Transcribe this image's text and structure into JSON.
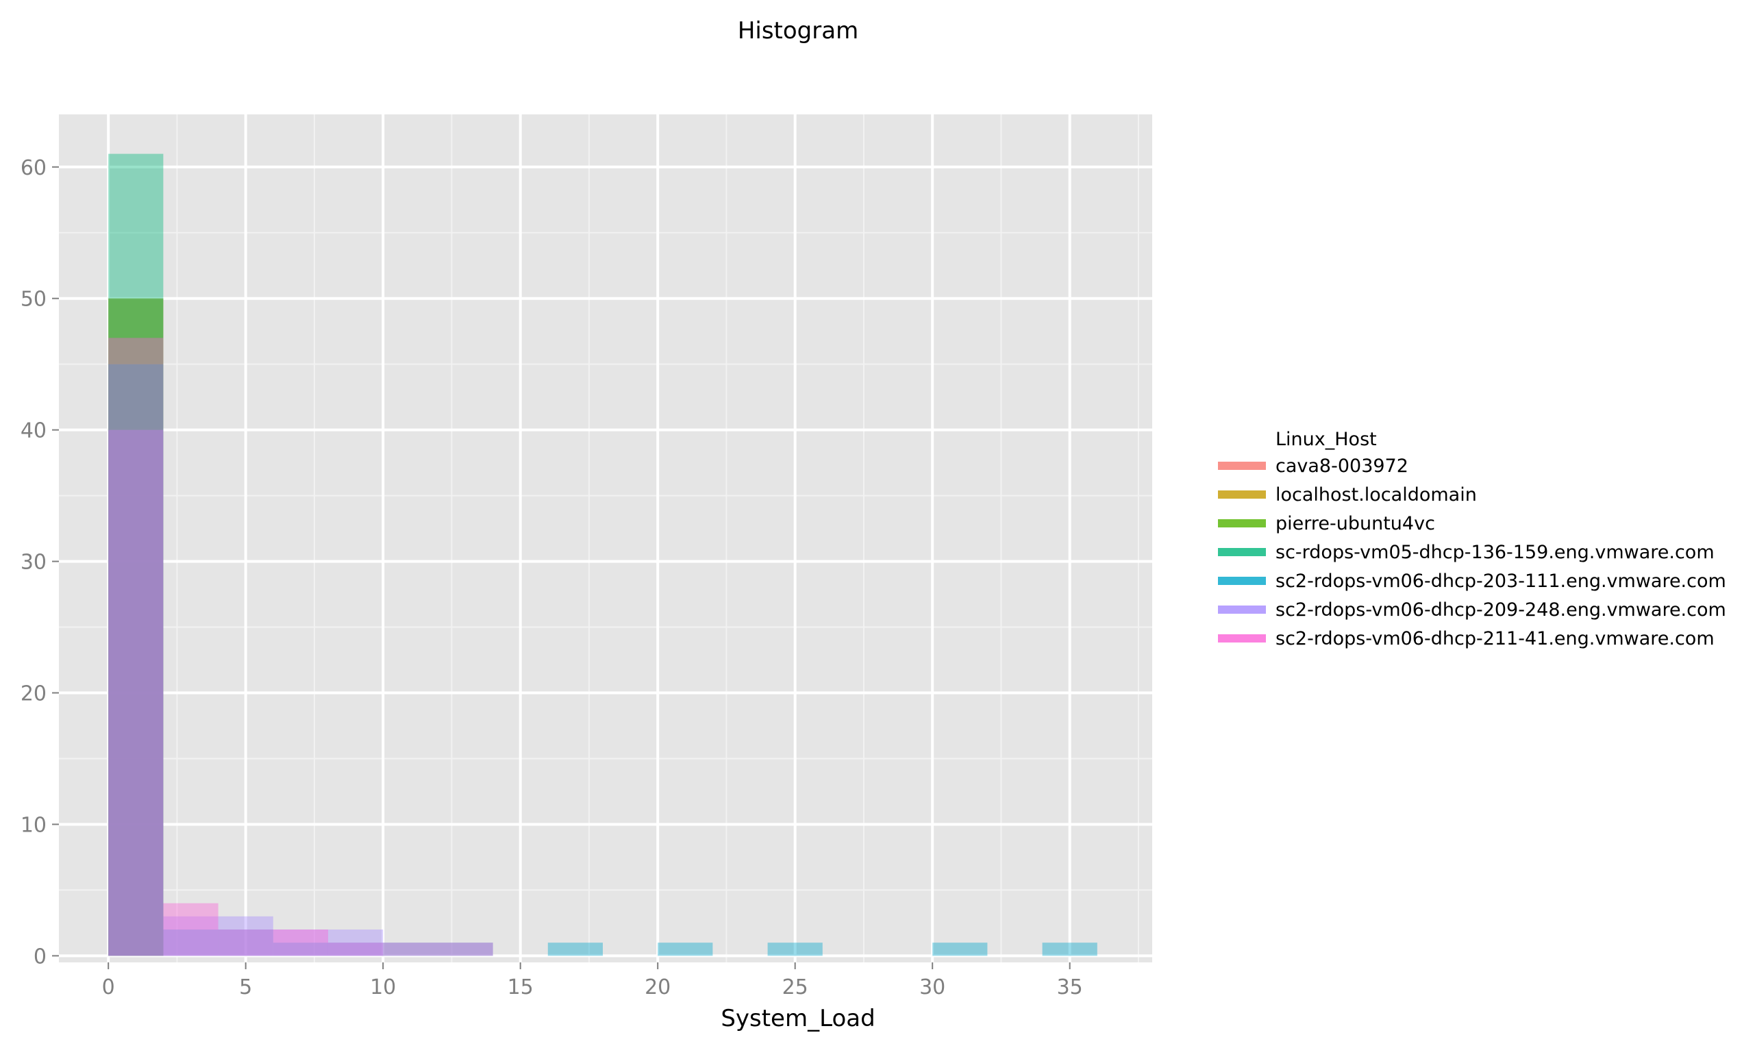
{
  "chart_data": {
    "type": "bar",
    "title": "Histogram",
    "xlabel": "System_Load",
    "ylabel": "",
    "xlim": [
      -1.8,
      38
    ],
    "ylim": [
      -0.5,
      64
    ],
    "x_ticks": [
      0,
      5,
      10,
      15,
      20,
      25,
      30,
      35
    ],
    "y_ticks": [
      0,
      10,
      20,
      30,
      40,
      50,
      60
    ],
    "x_minor_ticks": [
      2.5,
      7.5,
      12.5,
      17.5,
      22.5,
      27.5,
      32.5,
      37.5
    ],
    "y_minor_ticks": [
      5,
      15,
      25,
      35,
      45,
      55
    ],
    "grid": true,
    "legend_title": "Linux_Host",
    "legend_placement": "right",
    "bin_width": 2,
    "series": [
      {
        "name": "cava8-003972",
        "color": "#F8766D",
        "bins": [
          {
            "x0": 0,
            "x1": 2,
            "count": 50
          }
        ]
      },
      {
        "name": "localhost.localdomain",
        "color": "#C49A00",
        "bins": [
          {
            "x0": 0,
            "x1": 2,
            "count": 50
          }
        ]
      },
      {
        "name": "pierre-ubuntu4vc",
        "color": "#53B400",
        "bins": [
          {
            "x0": 0,
            "x1": 2,
            "count": 50
          }
        ]
      },
      {
        "name": "sc-rdops-vm05-dhcp-136-159.eng.vmware.com",
        "color": "#00B67A",
        "bins": [
          {
            "x0": 0,
            "x1": 2,
            "count": 61
          }
        ]
      },
      {
        "name": "sc2-rdops-vm06-dhcp-203-111.eng.vmware.com",
        "color": "#00A6CA",
        "bins": [
          {
            "x0": 0,
            "x1": 2,
            "count": 45
          },
          {
            "x0": 2,
            "x1": 4,
            "count": 2
          },
          {
            "x0": 4,
            "x1": 6,
            "count": 2
          },
          {
            "x0": 6,
            "x1": 8,
            "count": 1
          },
          {
            "x0": 8,
            "x1": 10,
            "count": 1
          },
          {
            "x0": 10,
            "x1": 12,
            "count": 1
          },
          {
            "x0": 12,
            "x1": 14,
            "count": 1
          },
          {
            "x0": 16,
            "x1": 18,
            "count": 1
          },
          {
            "x0": 20,
            "x1": 22,
            "count": 1
          },
          {
            "x0": 24,
            "x1": 26,
            "count": 1
          },
          {
            "x0": 30,
            "x1": 32,
            "count": 1
          },
          {
            "x0": 34,
            "x1": 36,
            "count": 1
          }
        ]
      },
      {
        "name": "sc2-rdops-vm06-dhcp-209-248.eng.vmware.com",
        "color": "#A58AFF",
        "bins": [
          {
            "x0": 0,
            "x1": 2,
            "count": 40
          },
          {
            "x0": 2,
            "x1": 4,
            "count": 3
          },
          {
            "x0": 4,
            "x1": 6,
            "count": 3
          },
          {
            "x0": 6,
            "x1": 8,
            "count": 2
          },
          {
            "x0": 8,
            "x1": 10,
            "count": 2
          }
        ]
      },
      {
        "name": "sc2-rdops-vm06-dhcp-211-41.eng.vmware.com",
        "color": "#FB61D7",
        "bins": [
          {
            "x0": 0,
            "x1": 2,
            "count": 47
          },
          {
            "x0": 2,
            "x1": 4,
            "count": 4
          },
          {
            "x0": 4,
            "x1": 6,
            "count": 2
          },
          {
            "x0": 6,
            "x1": 8,
            "count": 2
          },
          {
            "x0": 8,
            "x1": 10,
            "count": 1
          },
          {
            "x0": 10,
            "x1": 12,
            "count": 1
          },
          {
            "x0": 12,
            "x1": 14,
            "count": 1
          }
        ]
      }
    ]
  }
}
